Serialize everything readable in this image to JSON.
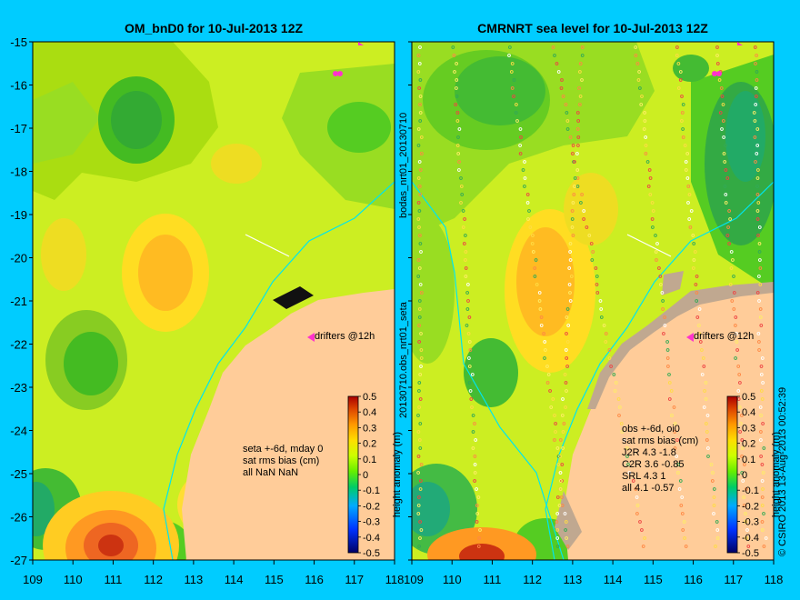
{
  "colors": {
    "background": "#00ccff",
    "land": "#ffcc99",
    "coast_line": "#00e5ee",
    "drifter": "#ff33cc",
    "grey_mask": "#c0a890"
  },
  "panels": [
    {
      "title": "OM_bnD0 for 10-Jul-2013 12Z",
      "info_lines": [
        "seta +-6d, mday 0",
        "sat rms bias (cm)",
        "all NaN NaN"
      ],
      "drifters_label": "drifters @12h",
      "show_obs": false
    },
    {
      "title": "CMRNRT sea level  for 10-Jul-2013 12Z",
      "info_lines": [
        "obs +-6d, oi0",
        "sat rms bias (cm)",
        "J2R   4.3  -1.8",
        "C2R   3.6  -0.85",
        "SRL   4.3  1",
        "all   4.1  -0.57"
      ],
      "drifters_label": "drifters @12h",
      "show_obs": true
    }
  ],
  "center_label_top": "bodas_nrt01_20130710",
  "center_label_bottom": "20130710.obs_nrt01_seta",
  "right_label": "© CSIRO 2013   13-Aug-2013 00:52:39",
  "chart_data": {
    "type": "heatmap",
    "x_ticks": [
      "109",
      "110",
      "111",
      "112",
      "113",
      "114",
      "115",
      "116",
      "117",
      "118"
    ],
    "y_ticks": [
      "-15",
      "-16",
      "-17",
      "-18",
      "-19",
      "-20",
      "-21",
      "-22",
      "-23",
      "-24",
      "-25",
      "-26",
      "-27"
    ],
    "xlim": [
      109,
      118
    ],
    "ylim": [
      -27,
      -15
    ],
    "colorbar": {
      "label": "height anomaly (m)",
      "ticks": [
        "0.5",
        "0.4",
        "0.3",
        "0.2",
        "0.1",
        "0",
        "-0.1",
        "-0.2",
        "-0.3",
        "-0.4",
        "-0.5"
      ],
      "range": [
        -0.5,
        0.5
      ]
    }
  }
}
